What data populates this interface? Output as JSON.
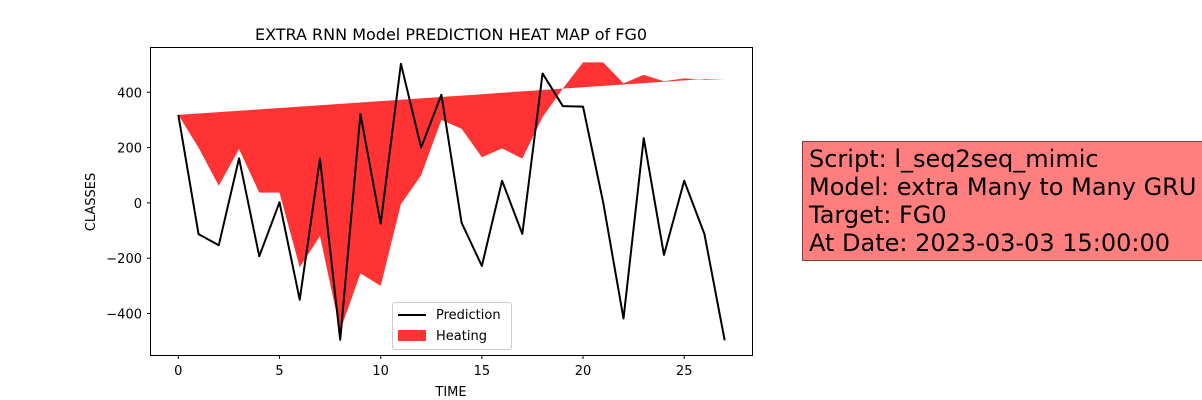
{
  "chart_data": {
    "type": "line",
    "title": "EXTRA RNN Model PREDICTION HEAT MAP of FG0",
    "xlabel": "TIME",
    "ylabel": "CLASSES",
    "xlim": [
      -1.35,
      28.35
    ],
    "ylim": [
      -550,
      560
    ],
    "xticks": [
      0,
      5,
      10,
      15,
      20,
      25
    ],
    "yticks": [
      -400,
      -200,
      0,
      200,
      400
    ],
    "grid": false,
    "legend_position": "lower-center",
    "x": [
      0,
      1,
      2,
      3,
      4,
      5,
      6,
      7,
      8,
      9,
      10,
      11,
      12,
      13,
      14,
      15,
      16,
      17,
      18,
      19,
      20,
      21,
      22,
      23,
      24,
      25,
      26,
      27
    ],
    "series": [
      {
        "name": "Prediction",
        "kind": "line",
        "color": "#000000",
        "values": [
          318,
          -113,
          -153,
          161,
          -193,
          2,
          -350,
          160,
          -495,
          321,
          -75,
          503,
          200,
          391,
          -72,
          -228,
          80,
          -112,
          468,
          350,
          348,
          0,
          -418,
          234,
          -188,
          80,
          -113,
          -497
        ]
      },
      {
        "name": "Heating",
        "kind": "fill_between",
        "color": "#ff0000",
        "alpha": 0.8,
        "baseline": [
          318,
          323,
          328,
          333,
          338,
          343,
          348,
          353,
          358,
          363,
          368,
          373,
          378,
          383,
          388,
          393,
          398,
          403,
          408,
          413,
          418,
          423,
          428,
          433,
          438,
          443,
          448,
          448
        ],
        "values": [
          318,
          200,
          62,
          195,
          37,
          37,
          -233,
          -120,
          -462,
          -255,
          -300,
          -5,
          100,
          300,
          268,
          165,
          197,
          160,
          310,
          413,
          508,
          508,
          432,
          463,
          440,
          450,
          445,
          448
        ]
      }
    ]
  },
  "info_box": {
    "line1": "Script: l_seq2seq_mimic",
    "line2": "Model: extra Many to Many GRU",
    "line3": "Target: FG0",
    "line4": "At Date: 2023-03-03 15:00:00"
  }
}
